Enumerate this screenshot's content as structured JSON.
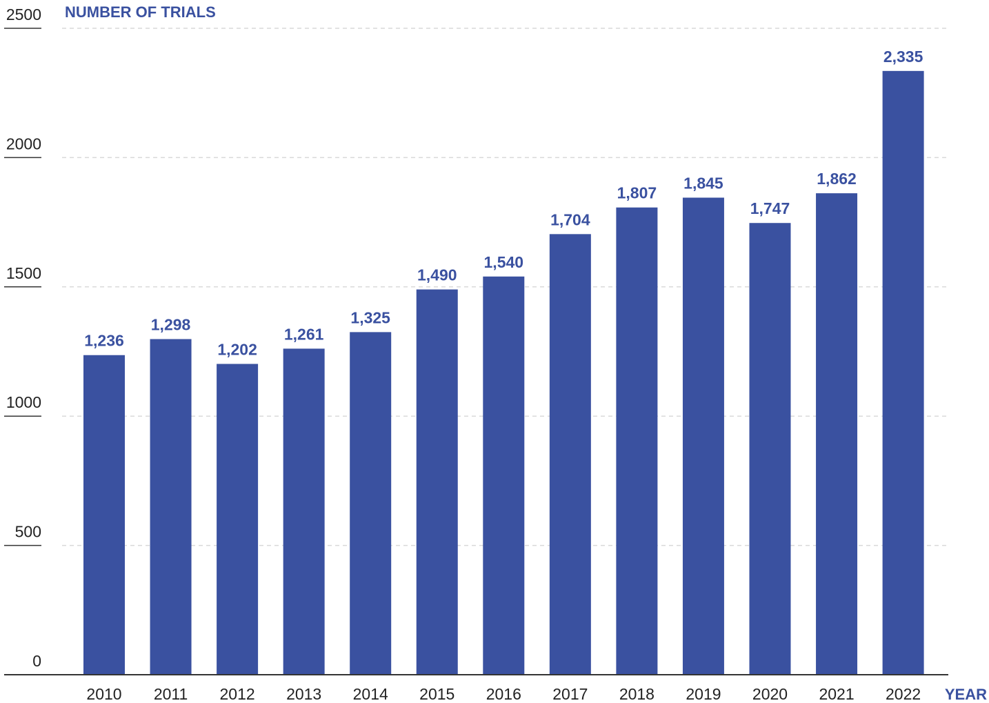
{
  "chart_data": {
    "type": "bar",
    "title": "",
    "ylabel": "NUMBER OF TRIALS",
    "xlabel": "YEAR",
    "ylim": [
      0,
      2500
    ],
    "yticks": [
      0,
      500,
      1000,
      1500,
      2000,
      2500
    ],
    "ytick_labels": [
      "0",
      "500",
      "1000",
      "1500",
      "2000",
      "2500"
    ],
    "grid": true,
    "categories": [
      "2010",
      "2011",
      "2012",
      "2013",
      "2014",
      "2015",
      "2016",
      "2017",
      "2018",
      "2019",
      "2020",
      "2021",
      "2022"
    ],
    "values": [
      1236,
      1298,
      1202,
      1261,
      1325,
      1490,
      1540,
      1704,
      1807,
      1845,
      1747,
      1862,
      2335
    ],
    "value_labels": [
      "1,236",
      "1,298",
      "1,202",
      "1,261",
      "1,325",
      "1,490",
      "1,540",
      "1,704",
      "1,807",
      "1,845",
      "1,747",
      "1,862",
      "2,335"
    ],
    "bar_color": "#3a51a0",
    "label_color": "#3a51a0"
  }
}
